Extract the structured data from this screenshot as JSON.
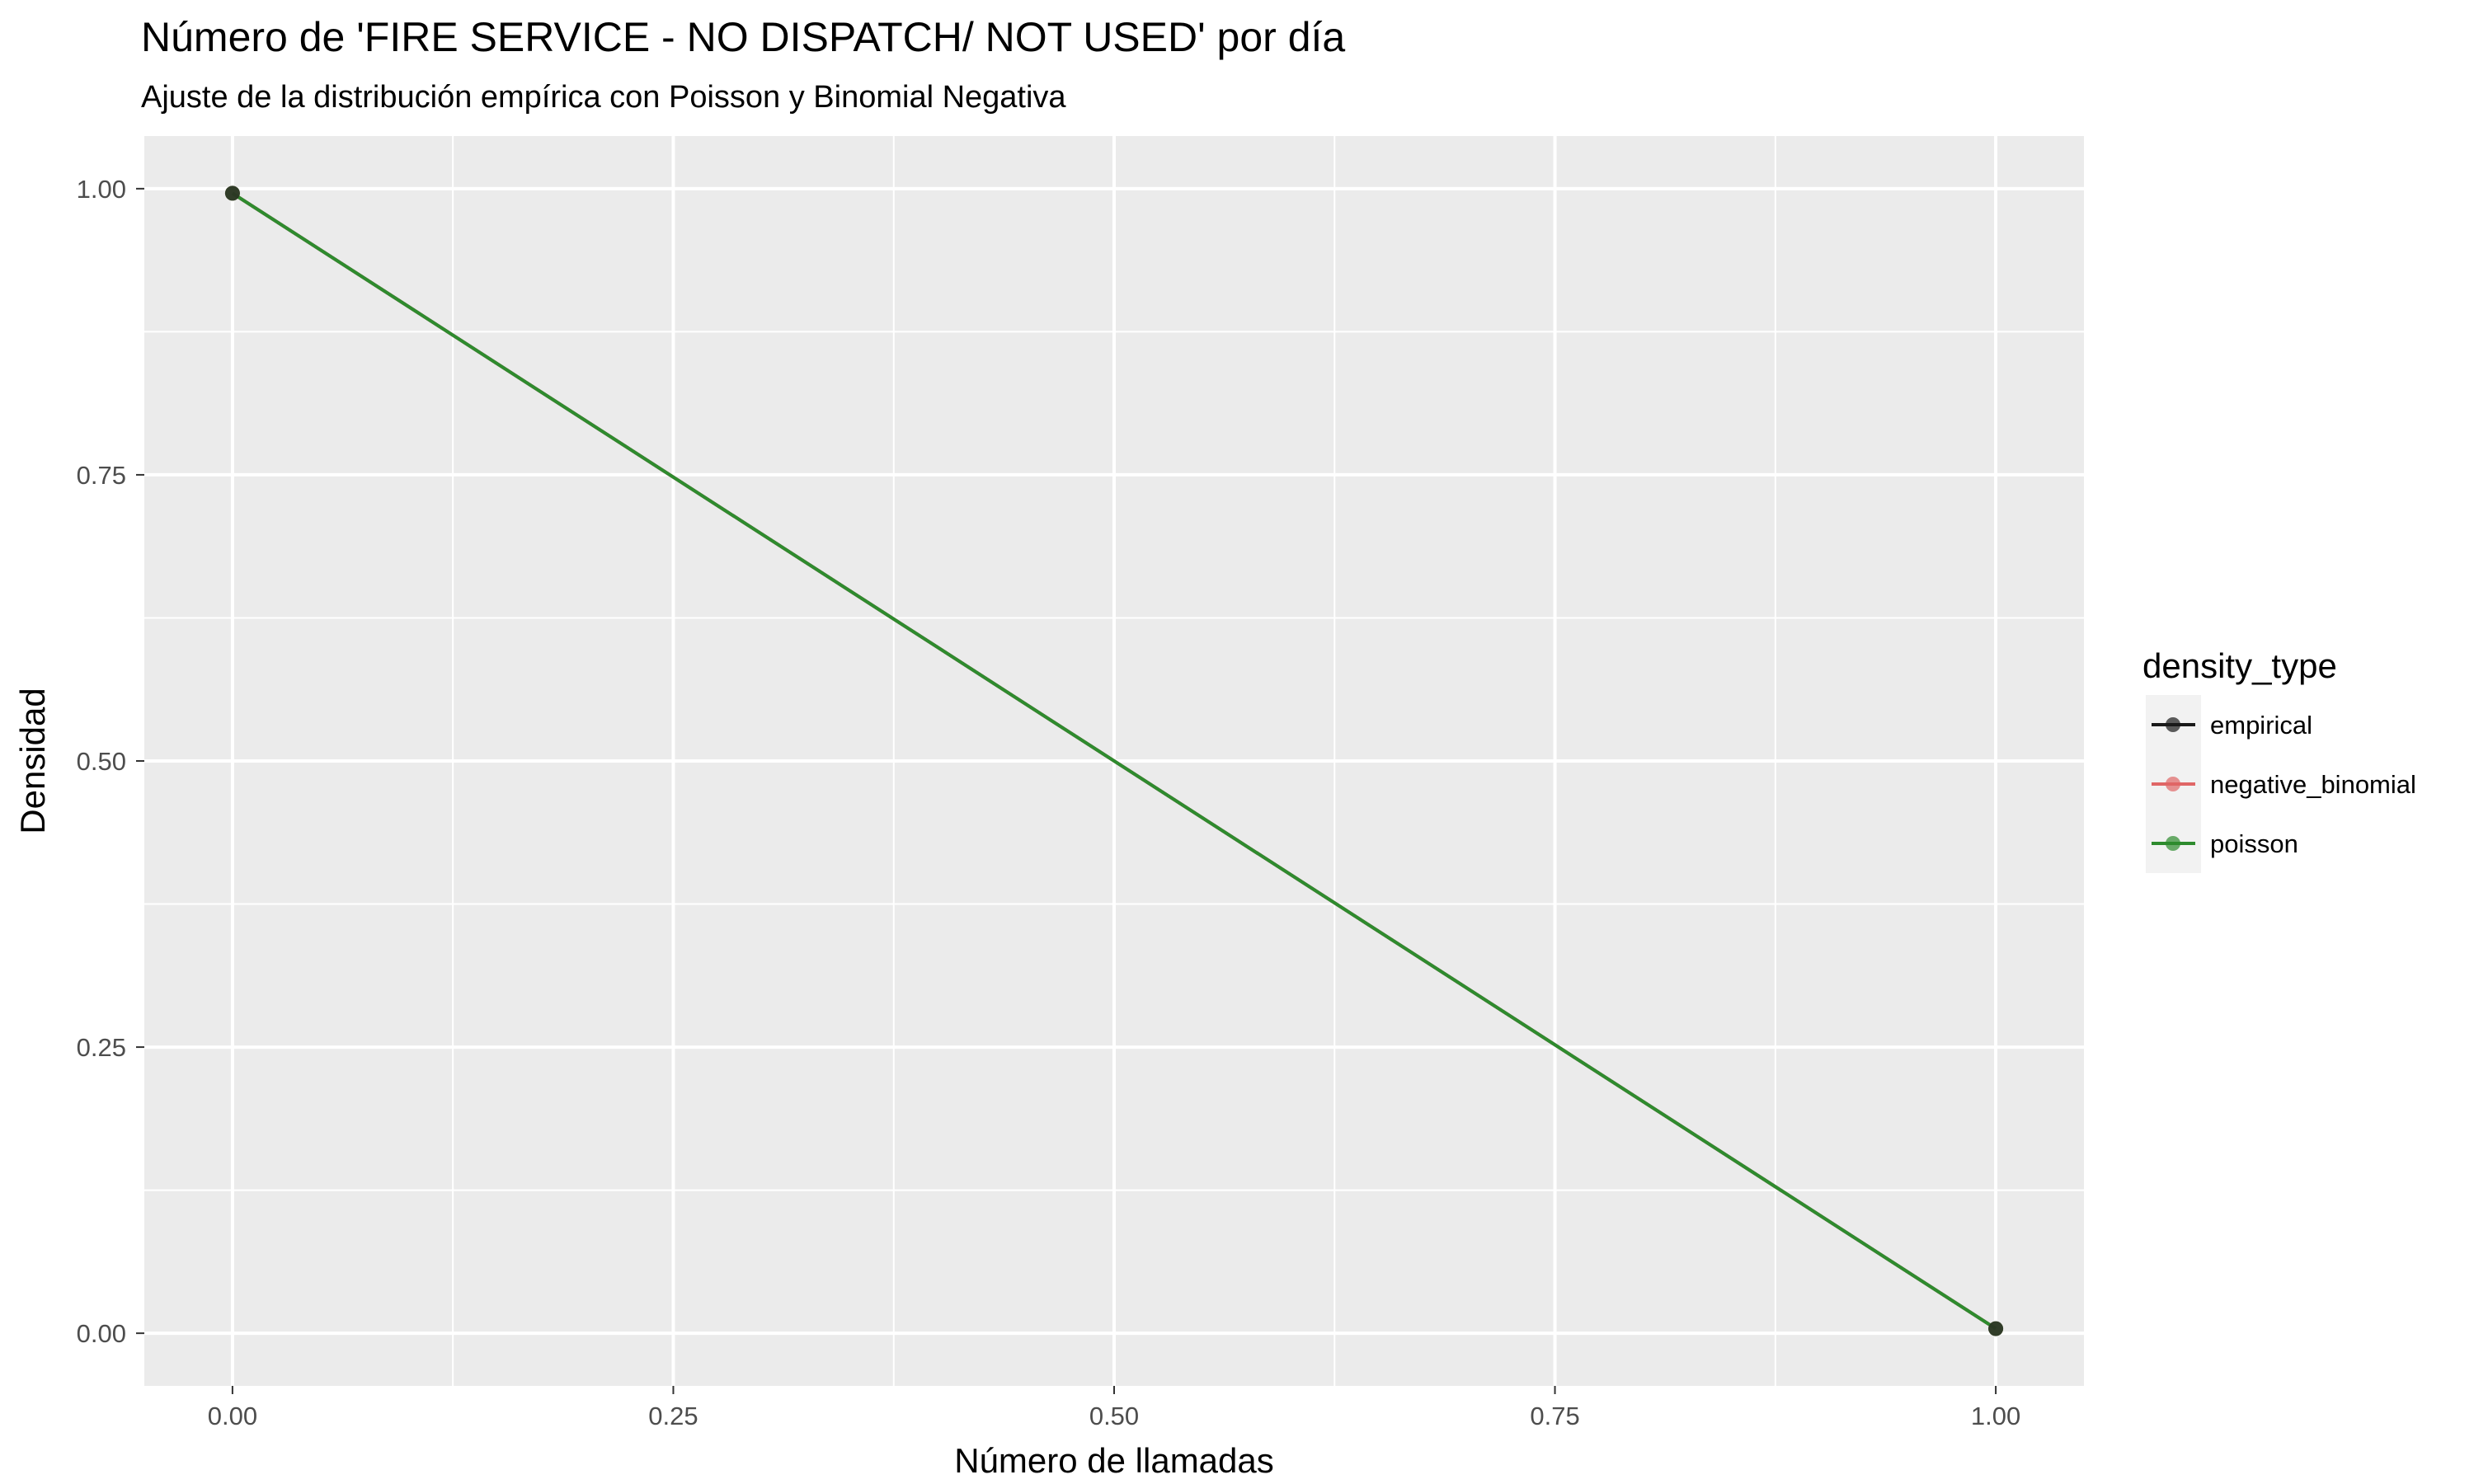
{
  "chart_data": {
    "type": "line",
    "title": "Número de 'FIRE SERVICE - NO DISPATCH/ NOT USED' por día",
    "subtitle": "Ajuste de la distribución empírica con Poisson y Binomial Negativa",
    "xlabel": "Número de llamadas",
    "ylabel": "Densidad",
    "xlim": [
      -0.05,
      1.05
    ],
    "ylim": [
      -0.046,
      1.046
    ],
    "x_ticks": [
      0,
      0.25,
      0.5,
      0.75,
      1
    ],
    "x_tick_labels": [
      "0.00",
      "0.25",
      "0.50",
      "0.75",
      "1.00"
    ],
    "y_ticks": [
      0,
      0.25,
      0.5,
      0.75,
      1
    ],
    "y_tick_labels": [
      "0.00",
      "0.25",
      "0.50",
      "0.75",
      "1.00"
    ],
    "grid": true,
    "panel_background": "#ebebeb",
    "grid_color": "#ffffff",
    "legend": {
      "title": "density_type",
      "position": "right"
    },
    "series": [
      {
        "name": "empirical",
        "color": "#1a1a1a",
        "x": [
          0,
          1
        ],
        "y": [
          0.996,
          0.004
        ]
      },
      {
        "name": "negative_binomial",
        "color": "#e06666",
        "x": [
          0,
          1
        ],
        "y": [
          0.996,
          0.004
        ]
      },
      {
        "name": "poisson",
        "color": "#2e8b2e",
        "x": [
          0,
          1
        ],
        "y": [
          0.996,
          0.004
        ]
      }
    ]
  }
}
